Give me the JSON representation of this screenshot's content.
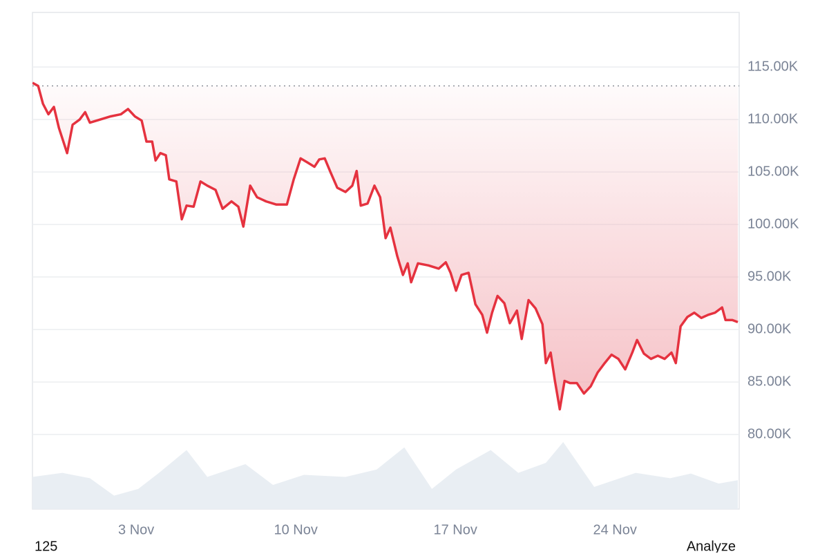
{
  "chart_data": {
    "type": "line",
    "x": [
      -1.55,
      -1.3,
      -1.09,
      -0.85,
      -0.61,
      -0.39,
      -0.03,
      0.21,
      0.52,
      0.76,
      0.97,
      1.42,
      1.88,
      2.33,
      2.64,
      2.94,
      3.24,
      3.45,
      3.7,
      3.85,
      4.06,
      4.3,
      4.45,
      4.76,
      5.0,
      5.21,
      5.52,
      5.82,
      6.12,
      6.48,
      6.79,
      7.18,
      7.48,
      7.7,
      8.0,
      8.3,
      8.7,
      9.15,
      9.61,
      9.91,
      10.21,
      10.52,
      10.82,
      11.03,
      11.27,
      11.52,
      11.82,
      12.18,
      12.48,
      12.67,
      12.85,
      13.15,
      13.45,
      13.7,
      13.94,
      14.15,
      14.45,
      14.7,
      14.91,
      15.06,
      15.36,
      15.82,
      16.27,
      16.58,
      16.79,
      17.03,
      17.27,
      17.58,
      17.88,
      18.18,
      18.39,
      18.61,
      18.85,
      19.15,
      19.39,
      19.7,
      19.91,
      20.21,
      20.52,
      20.82,
      20.97,
      21.18,
      21.36,
      21.58,
      21.79,
      22.03,
      22.33,
      22.64,
      22.94,
      23.24,
      23.55,
      23.85,
      24.15,
      24.45,
      24.76,
      24.97,
      25.27,
      25.58,
      25.88,
      26.18,
      26.48,
      26.67,
      26.88,
      27.18,
      27.48,
      27.79,
      28.09,
      28.39,
      28.7,
      28.85,
      29.15,
      29.39
    ],
    "series": [
      {
        "color": "#e5323f",
        "values": [
          113500,
          113200,
          111500,
          110500,
          111200,
          109200,
          106800,
          109500,
          110000,
          110700,
          109700,
          110000,
          110300,
          110500,
          111000,
          110300,
          109900,
          107900,
          107900,
          106100,
          106800,
          106600,
          104300,
          104100,
          100500,
          101800,
          101700,
          104100,
          103700,
          103300,
          101500,
          102200,
          101700,
          99800,
          103700,
          102600,
          102200,
          101900,
          101900,
          104300,
          106300,
          105900,
          105500,
          106200,
          106300,
          105000,
          103500,
          103100,
          103700,
          105100,
          101800,
          102000,
          103700,
          102600,
          98700,
          99700,
          97000,
          95200,
          96300,
          94500,
          96300,
          96100,
          95800,
          96400,
          95400,
          93700,
          95200,
          95400,
          92400,
          91400,
          89700,
          91600,
          93200,
          92500,
          90600,
          91800,
          89100,
          92800,
          92000,
          90500,
          86800,
          87800,
          85200,
          82400,
          85100,
          84900,
          84900,
          83900,
          84600,
          85900,
          86800,
          87600,
          87200,
          86200,
          87800,
          89000,
          87700,
          87200,
          87500,
          87200,
          87800,
          86800,
          90300,
          91200,
          91600,
          91100,
          91400,
          91600,
          92100,
          90900,
          90900,
          90700
        ]
      }
    ],
    "xlim": [
      -1.55,
      29.45
    ],
    "xticks": [
      {
        "value": 3,
        "label": "3 Nov"
      },
      {
        "value": 10,
        "label": "10 Nov"
      },
      {
        "value": 17,
        "label": "17 Nov"
      },
      {
        "value": 24,
        "label": "24 Nov"
      }
    ],
    "ylim": [
      72900,
      120200
    ],
    "yticks": [
      {
        "value": 80000,
        "label": "80.00K"
      },
      {
        "value": 85000,
        "label": "85.00K"
      },
      {
        "value": 90000,
        "label": "90.00K"
      },
      {
        "value": 95000,
        "label": "95.00K"
      },
      {
        "value": 100000,
        "label": "100.00K"
      },
      {
        "value": 105000,
        "label": "105.00K"
      },
      {
        "value": 110000,
        "label": "110.00K"
      },
      {
        "value": 115000,
        "label": "115.00K"
      }
    ],
    "grid": true,
    "reference_value": 113200,
    "reference_color": "#8a8f99",
    "fill_color": "#f2aab1",
    "volume": {
      "color": "#e9eef3",
      "x": [
        -1.55,
        -0.24,
        0.97,
        2.03,
        3.09,
        4.0,
        5.21,
        6.12,
        7.79,
        9.0,
        10.36,
        12.18,
        13.55,
        14.76,
        15.97,
        17.03,
        18.55,
        19.76,
        20.97,
        21.73,
        23.09,
        24.91,
        26.42,
        27.33,
        28.55,
        29.39
      ],
      "values": [
        48,
        54,
        46,
        20,
        30,
        54,
        88,
        48,
        67,
        36,
        51,
        48,
        59,
        92,
        30,
        59,
        88,
        54,
        69,
        100,
        33,
        54,
        46,
        53,
        38,
        43
      ],
      "ylim": [
        0,
        100
      ]
    }
  },
  "footer": {
    "left": "125",
    "right": "Analyze"
  }
}
